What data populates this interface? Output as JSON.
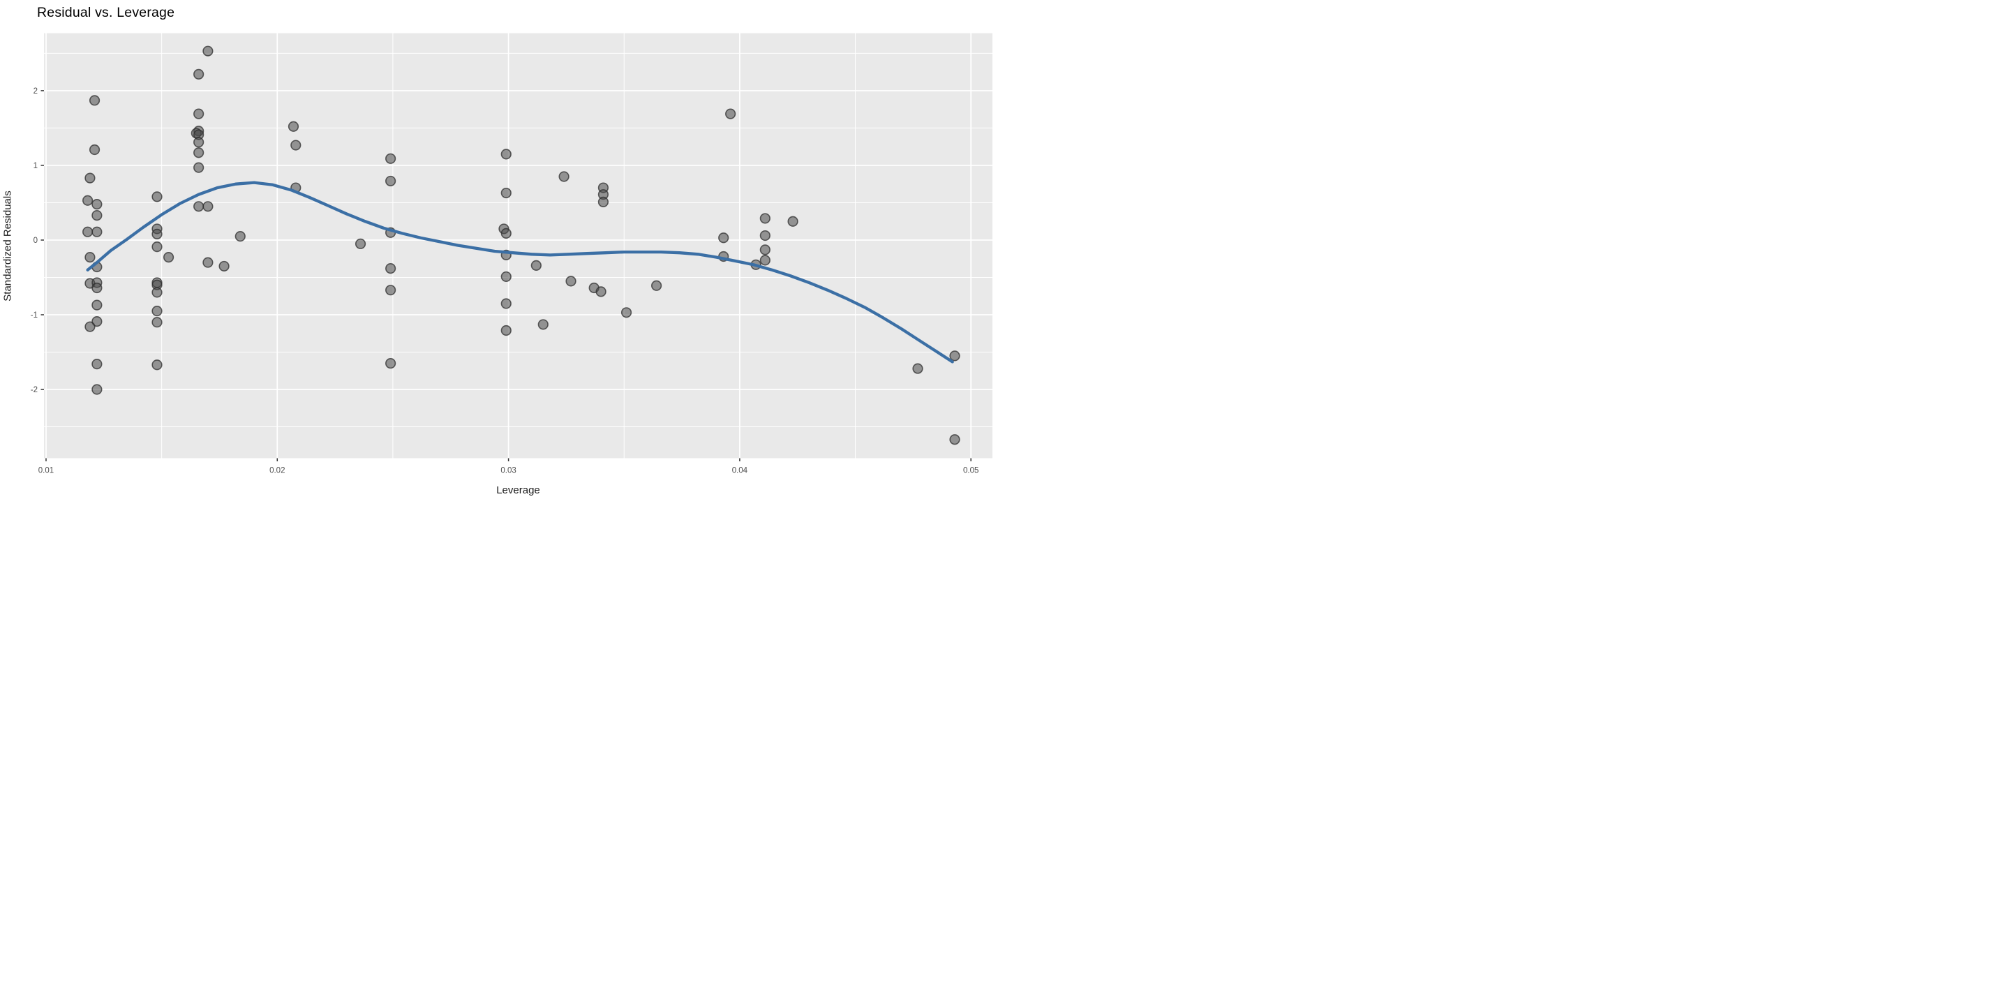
{
  "chart_data": {
    "type": "scatter",
    "title": "Residual vs. Leverage",
    "xlabel": "Leverage",
    "ylabel": "Standardized Residuals",
    "xlim": [
      0.00991,
      0.05093
    ],
    "ylim": [
      -2.92,
      2.77
    ],
    "grid": "on",
    "legend_position": "none",
    "x_ticks": [
      {
        "value": 0.01,
        "label": "0.01"
      },
      {
        "value": 0.02,
        "label": "0.02"
      },
      {
        "value": 0.03,
        "label": "0.03"
      },
      {
        "value": 0.04,
        "label": "0.04"
      },
      {
        "value": 0.05,
        "label": "0.05"
      }
    ],
    "y_ticks": [
      {
        "value": 2,
        "label": "2"
      },
      {
        "value": 1,
        "label": "1"
      },
      {
        "value": 0,
        "label": "0"
      },
      {
        "value": -1,
        "label": "-1"
      },
      {
        "value": -2,
        "label": "-2"
      }
    ],
    "x_minor_breaks": [
      0.015,
      0.025,
      0.035,
      0.045
    ],
    "y_minor_breaks": [
      2.5,
      1.5,
      0.5,
      -0.5,
      -1.5,
      -2.5
    ],
    "points": [
      [
        0.0121,
        1.87
      ],
      [
        0.0121,
        1.21
      ],
      [
        0.0119,
        0.83
      ],
      [
        0.0118,
        0.53
      ],
      [
        0.0122,
        0.48
      ],
      [
        0.0122,
        0.33
      ],
      [
        0.0118,
        0.11
      ],
      [
        0.0122,
        0.11
      ],
      [
        0.0119,
        -0.23
      ],
      [
        0.0122,
        -0.36
      ],
      [
        0.0119,
        -0.58
      ],
      [
        0.0122,
        -0.57
      ],
      [
        0.0122,
        -0.64
      ],
      [
        0.0122,
        -0.87
      ],
      [
        0.0122,
        -1.09
      ],
      [
        0.0119,
        -1.16
      ],
      [
        0.0122,
        -1.66
      ],
      [
        0.0122,
        -2.0
      ],
      [
        0.0148,
        0.58
      ],
      [
        0.0148,
        0.15
      ],
      [
        0.0148,
        0.08
      ],
      [
        0.0148,
        -0.09
      ],
      [
        0.0153,
        -0.23
      ],
      [
        0.0148,
        -0.57
      ],
      [
        0.0148,
        -0.6
      ],
      [
        0.0148,
        -0.7
      ],
      [
        0.0148,
        -0.95
      ],
      [
        0.0148,
        -1.1
      ],
      [
        0.0148,
        -1.67
      ],
      [
        0.017,
        2.53
      ],
      [
        0.0166,
        2.22
      ],
      [
        0.0166,
        1.69
      ],
      [
        0.0166,
        1.46
      ],
      [
        0.0165,
        1.43
      ],
      [
        0.0166,
        1.41
      ],
      [
        0.0166,
        1.31
      ],
      [
        0.0166,
        1.17
      ],
      [
        0.0166,
        0.97
      ],
      [
        0.0166,
        0.45
      ],
      [
        0.017,
        0.45
      ],
      [
        0.017,
        -0.3
      ],
      [
        0.0177,
        -0.35
      ],
      [
        0.0184,
        0.05
      ],
      [
        0.0207,
        1.52
      ],
      [
        0.0208,
        1.27
      ],
      [
        0.0208,
        0.7
      ],
      [
        0.0236,
        -0.05
      ],
      [
        0.0249,
        1.09
      ],
      [
        0.0249,
        0.79
      ],
      [
        0.0249,
        0.1
      ],
      [
        0.0249,
        -0.38
      ],
      [
        0.0249,
        -0.67
      ],
      [
        0.0249,
        -1.65
      ],
      [
        0.0299,
        1.15
      ],
      [
        0.0299,
        0.63
      ],
      [
        0.0298,
        0.15
      ],
      [
        0.0299,
        0.09
      ],
      [
        0.0299,
        -0.2
      ],
      [
        0.0299,
        -0.49
      ],
      [
        0.0299,
        -0.85
      ],
      [
        0.0299,
        -1.21
      ],
      [
        0.0312,
        -0.34
      ],
      [
        0.0315,
        -1.13
      ],
      [
        0.0324,
        0.85
      ],
      [
        0.0327,
        -0.55
      ],
      [
        0.0337,
        -0.64
      ],
      [
        0.034,
        -0.69
      ],
      [
        0.0341,
        0.7
      ],
      [
        0.0341,
        0.61
      ],
      [
        0.0341,
        0.51
      ],
      [
        0.0351,
        -0.97
      ],
      [
        0.0364,
        -0.61
      ],
      [
        0.0396,
        1.69
      ],
      [
        0.0393,
        0.03
      ],
      [
        0.0393,
        -0.22
      ],
      [
        0.0411,
        0.29
      ],
      [
        0.0411,
        0.06
      ],
      [
        0.0411,
        -0.13
      ],
      [
        0.0411,
        -0.27
      ],
      [
        0.0407,
        -0.33
      ],
      [
        0.0423,
        0.25
      ],
      [
        0.0477,
        -1.72
      ],
      [
        0.0493,
        -1.55
      ],
      [
        0.0493,
        -2.67
      ]
    ],
    "smooth_line": [
      [
        0.0118,
        -0.4
      ],
      [
        0.0122,
        -0.3
      ],
      [
        0.0128,
        -0.14
      ],
      [
        0.0135,
        0.01
      ],
      [
        0.0142,
        0.17
      ],
      [
        0.015,
        0.34
      ],
      [
        0.0158,
        0.49
      ],
      [
        0.0166,
        0.61
      ],
      [
        0.0174,
        0.7
      ],
      [
        0.0182,
        0.75
      ],
      [
        0.019,
        0.77
      ],
      [
        0.0198,
        0.74
      ],
      [
        0.0206,
        0.67
      ],
      [
        0.0214,
        0.57
      ],
      [
        0.0222,
        0.46
      ],
      [
        0.023,
        0.35
      ],
      [
        0.0238,
        0.25
      ],
      [
        0.0246,
        0.16
      ],
      [
        0.0254,
        0.09
      ],
      [
        0.0262,
        0.03
      ],
      [
        0.027,
        -0.02
      ],
      [
        0.0278,
        -0.07
      ],
      [
        0.0286,
        -0.11
      ],
      [
        0.0294,
        -0.15
      ],
      [
        0.0302,
        -0.17
      ],
      [
        0.031,
        -0.19
      ],
      [
        0.0318,
        -0.2
      ],
      [
        0.0326,
        -0.19
      ],
      [
        0.0334,
        -0.18
      ],
      [
        0.0342,
        -0.17
      ],
      [
        0.035,
        -0.16
      ],
      [
        0.0358,
        -0.16
      ],
      [
        0.0366,
        -0.16
      ],
      [
        0.0374,
        -0.17
      ],
      [
        0.0382,
        -0.19
      ],
      [
        0.039,
        -0.23
      ],
      [
        0.0398,
        -0.28
      ],
      [
        0.0406,
        -0.33
      ],
      [
        0.0414,
        -0.4
      ],
      [
        0.0422,
        -0.48
      ],
      [
        0.043,
        -0.57
      ],
      [
        0.0438,
        -0.67
      ],
      [
        0.0446,
        -0.78
      ],
      [
        0.0454,
        -0.9
      ],
      [
        0.0462,
        -1.04
      ],
      [
        0.047,
        -1.19
      ],
      [
        0.0478,
        -1.35
      ],
      [
        0.0486,
        -1.51
      ],
      [
        0.0492,
        -1.63
      ]
    ],
    "colors": {
      "panel_background": "#E9E9E9",
      "gridline": "#FFFFFF",
      "point_fill": "#4a4a4a",
      "point_stroke": "#2e2e2e",
      "smooth_line": "#3B6FA5",
      "tick_mark": "#333333",
      "axis_text": "#4D4D4D",
      "title_text": "#000000",
      "outer_background": "#FFFFFF"
    }
  }
}
